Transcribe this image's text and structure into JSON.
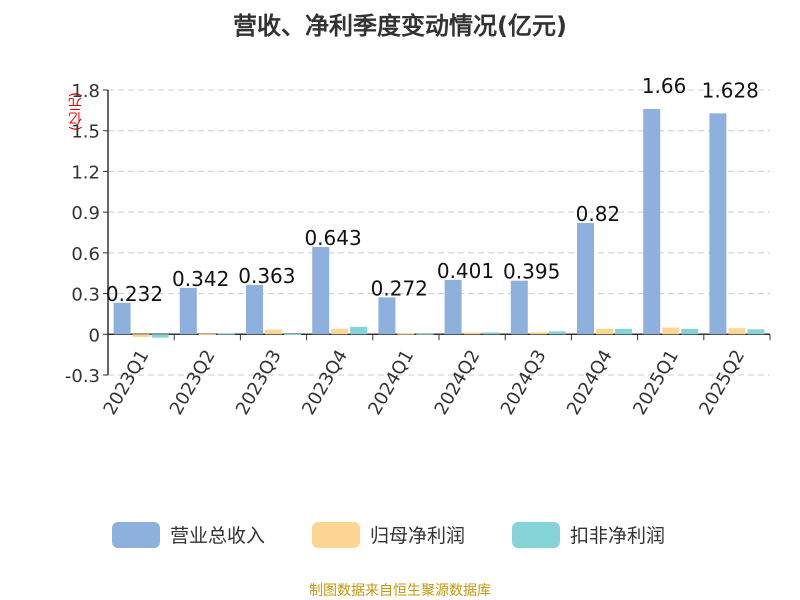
{
  "chart_data": {
    "type": "bar",
    "title": "营收、净利季度变动情况(亿元)",
    "ylabel": "(亿元)",
    "ylim": [
      -0.3,
      1.8
    ],
    "yticks": [
      "-0.3",
      "0",
      "0.3",
      "0.6",
      "0.9",
      "1.2",
      "1.5",
      "1.8"
    ],
    "grid": true,
    "legend_position": "bottom",
    "categories": [
      "2023Q1",
      "2023Q2",
      "2023Q3",
      "2023Q4",
      "2024Q1",
      "2024Q2",
      "2024Q3",
      "2024Q4",
      "2025Q1",
      "2025Q2"
    ],
    "series": [
      {
        "name": "营业总收入",
        "color": "#8eb0dc",
        "values": [
          0.232,
          0.342,
          0.363,
          0.643,
          0.272,
          0.401,
          0.395,
          0.82,
          1.66,
          1.628
        ],
        "labels": [
          "0.232",
          "0.342",
          "0.363",
          "0.643",
          "0.272",
          "0.401",
          "0.395",
          "0.82",
          "1.66",
          "1.628"
        ]
      },
      {
        "name": "归母净利润",
        "color": "#fdd594",
        "values": [
          -0.02,
          0.003,
          0.035,
          0.04,
          0.005,
          0.013,
          0.015,
          0.04,
          0.05,
          0.045
        ]
      },
      {
        "name": "扣非净利润",
        "color": "#86d4d8",
        "values": [
          -0.025,
          0.005,
          0.002,
          0.055,
          0.004,
          0.014,
          0.022,
          0.04,
          0.04,
          0.037
        ]
      }
    ]
  },
  "source": "制图数据来自恒生聚源数据库"
}
